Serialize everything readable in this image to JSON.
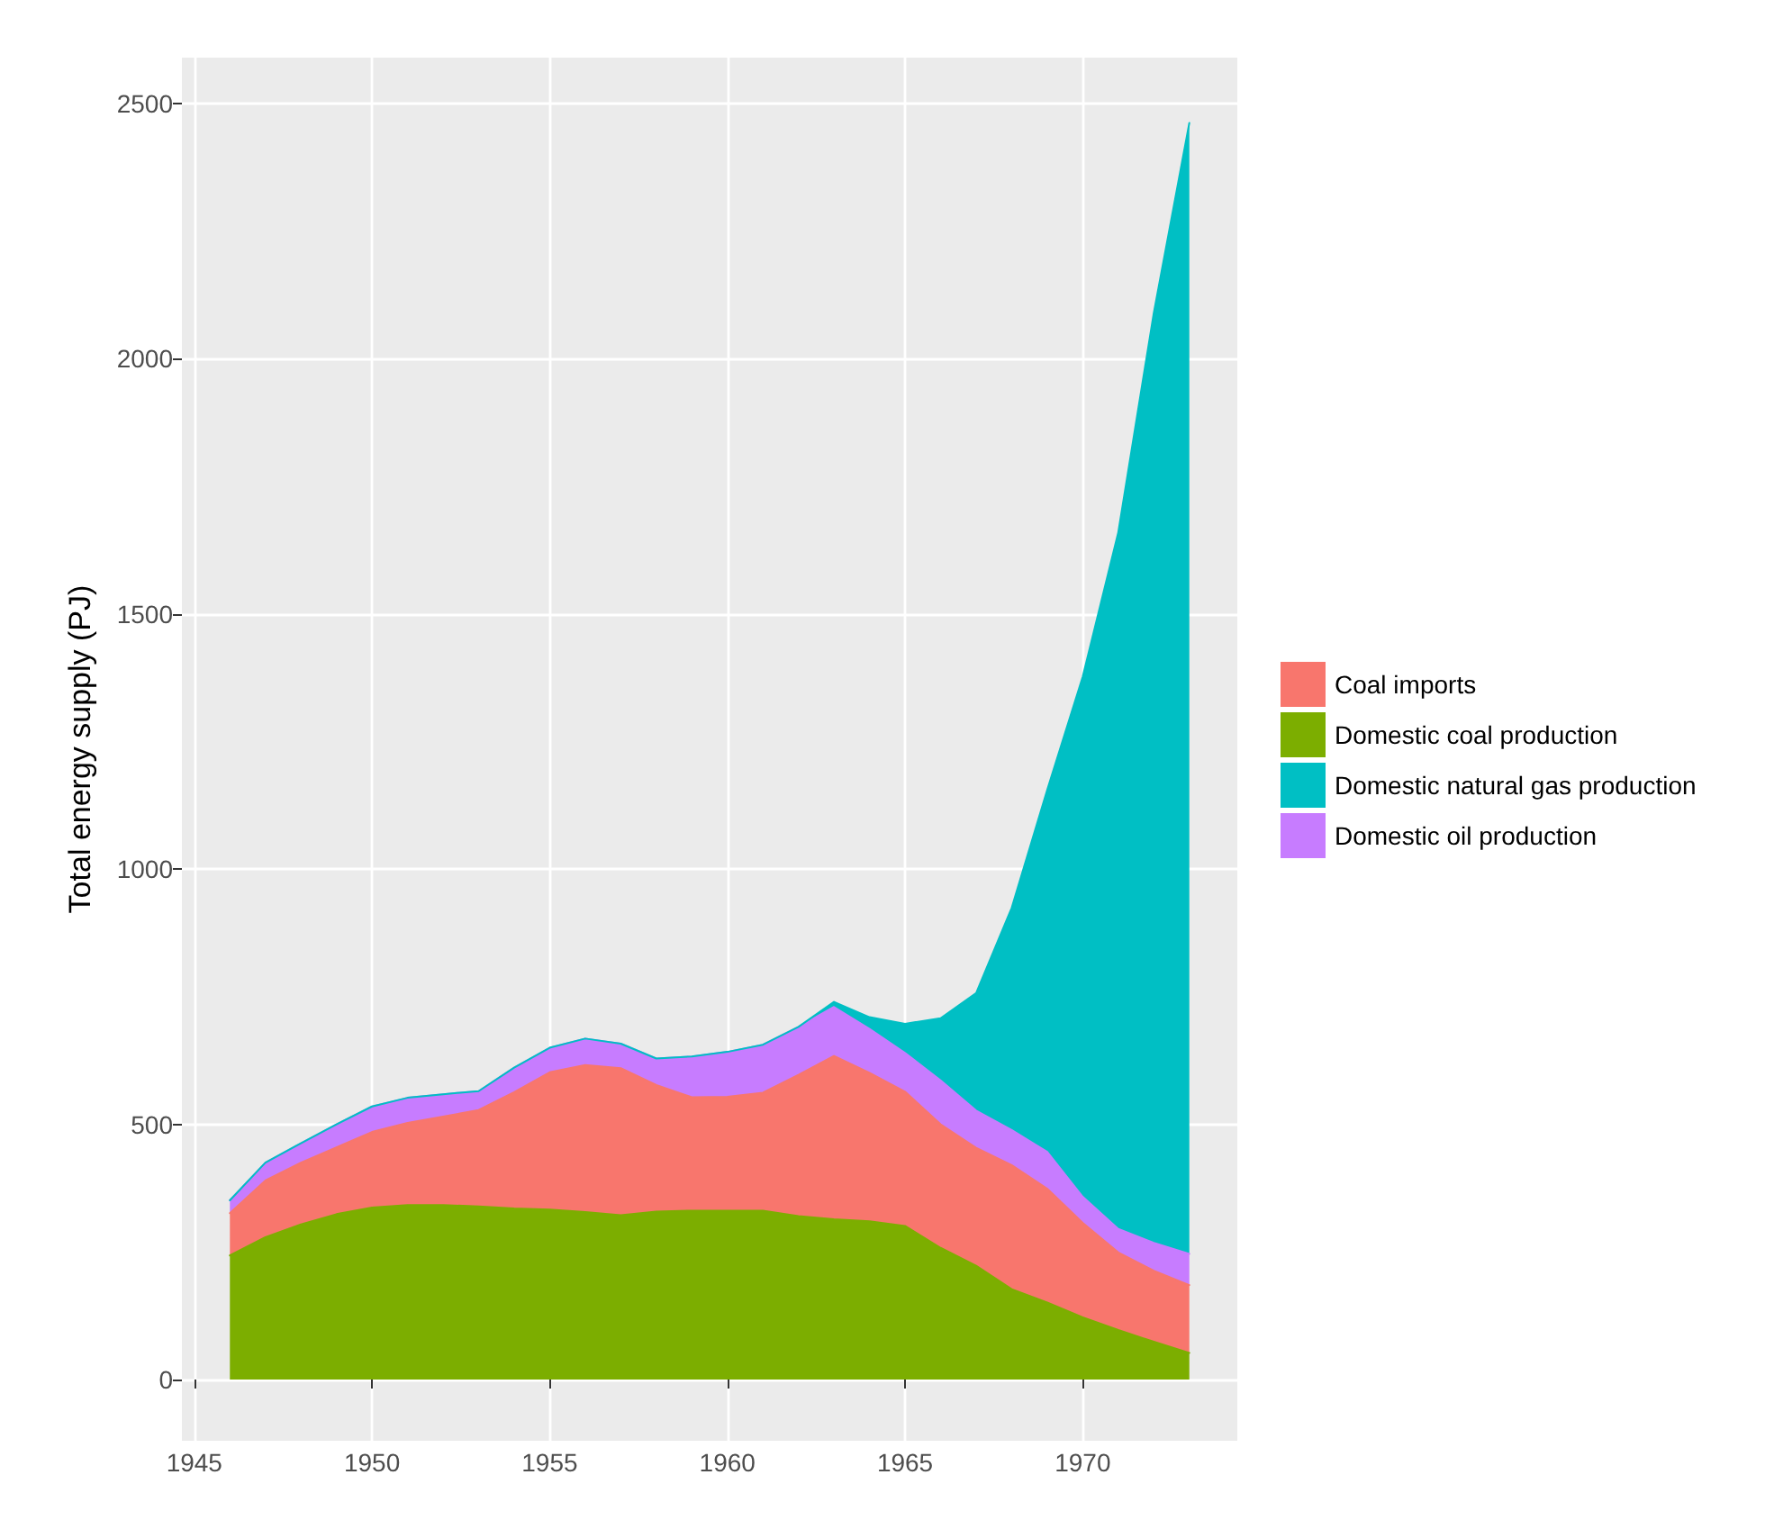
{
  "chart_data": {
    "type": "area",
    "stacked": true,
    "ylabel": "Total energy supply (PJ)",
    "x": [
      1946,
      1947,
      1948,
      1949,
      1950,
      1951,
      1952,
      1953,
      1954,
      1955,
      1956,
      1957,
      1958,
      1959,
      1960,
      1961,
      1962,
      1963,
      1964,
      1965,
      1966,
      1967,
      1968,
      1969,
      1970,
      1971,
      1972,
      1973
    ],
    "series": [
      {
        "name": "Domestic coal production",
        "color": "#7cae00",
        "values": [
          243,
          279,
          304,
          324,
          337,
          342,
          342,
          339,
          335,
          333,
          328,
          322,
          329,
          331,
          331,
          331,
          320,
          314,
          310,
          301,
          258,
          223,
          177,
          151,
          122,
          97,
          74,
          52
        ]
      },
      {
        "name": "Coal imports",
        "color": "#f8766d",
        "values": [
          83,
          111,
          121,
          131,
          148,
          161,
          173,
          189,
          228,
          269,
          288,
          288,
          248,
          222,
          223,
          231,
          277,
          320,
          291,
          263,
          242,
          231,
          243,
          223,
          185,
          152,
          139,
          133
        ]
      },
      {
        "name": "Domestic oil production",
        "color": "#c77cff",
        "values": [
          25,
          35,
          38,
          45,
          50,
          49,
          44,
          37,
          48,
          48,
          52,
          48,
          52,
          80,
          88,
          94,
          94,
          96,
          86,
          76,
          86,
          73,
          69,
          72,
          51,
          46,
          55,
          61
        ]
      },
      {
        "name": "Domestic natural gas production",
        "color": "#00bfc4",
        "values": [
          0,
          0,
          0,
          0,
          0,
          0,
          0,
          0,
          0,
          0,
          0,
          0,
          0,
          0,
          0,
          0,
          0,
          10,
          23,
          57,
          122,
          230,
          435,
          709,
          1019,
          1365,
          1822,
          2216
        ]
      }
    ],
    "xlim": [
      1944.65,
      1974.35
    ],
    "xticks": [
      1945,
      1950,
      1955,
      1960,
      1965,
      1970
    ],
    "ylim": [
      -120,
      2590
    ],
    "yticks": [
      0,
      500,
      1000,
      1500,
      2000,
      2500
    ],
    "grid": true,
    "legend": "right"
  }
}
